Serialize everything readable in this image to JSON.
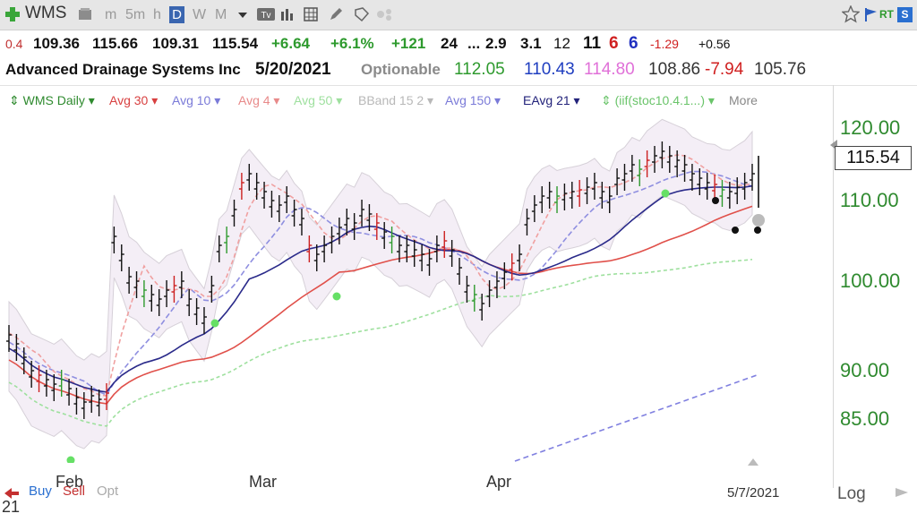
{
  "toolbar": {
    "symbol": "WMS",
    "periods": [
      "m",
      "5m",
      "h",
      "D",
      "W",
      "M"
    ],
    "selected_period": "D",
    "icons": [
      "add-icon",
      "settings-icon",
      "chart-type-icon",
      "bar-chart-icon",
      "grid-icon",
      "pencil-icon",
      "tag-icon",
      "dots-icon",
      "star-icon",
      "flag-icon",
      "rt-icon",
      "s-icon"
    ],
    "rt_label": "RT",
    "s_label": "S",
    "colors": {
      "toolbar_bg": "#e6e6e6",
      "selected": "#3a66b0"
    }
  },
  "quote_row": {
    "items": [
      {
        "text": "0.4",
        "color": "#c03030"
      },
      {
        "text": "109.36",
        "color": "#111111"
      },
      {
        "text": "115.66",
        "color": "#111111"
      },
      {
        "text": "109.31",
        "color": "#111111"
      },
      {
        "text": "115.54",
        "color": "#111111"
      },
      {
        "text": "+6.64",
        "color": "#2e9a2e"
      },
      {
        "text": "+6.1%",
        "color": "#2e9a2e"
      },
      {
        "text": "+121",
        "color": "#2e9a2e"
      },
      {
        "text": "24",
        "color": "#111111"
      },
      {
        "text": "...",
        "color": "#111111"
      },
      {
        "text": "2.9",
        "color": "#111111"
      },
      {
        "text": "3.1",
        "color": "#111111"
      },
      {
        "text": "12",
        "color": "#111111"
      },
      {
        "text": "11",
        "color": "#111111"
      },
      {
        "text": "6",
        "color": "#d02020"
      },
      {
        "text": "6",
        "color": "#2030c0"
      },
      {
        "text": "-1.29",
        "color": "#d02020"
      },
      {
        "text": "+0.56",
        "color": "#111111"
      }
    ]
  },
  "info_row": {
    "company": "Advanced Drainage Systems Inc",
    "date": "5/20/2021",
    "optionable": "Optionable",
    "values": [
      {
        "text": "112.05",
        "color": "#2e9a2e"
      },
      {
        "text": "110.43",
        "color": "#1f3ec0"
      },
      {
        "text": "114.80",
        "color": "#e070d8"
      },
      {
        "text": "108.86",
        "color": "#333333"
      },
      {
        "text": "-7.94",
        "color": "#d02020"
      },
      {
        "text": "105.76",
        "color": "#333333"
      }
    ]
  },
  "legend": {
    "items": [
      {
        "label": "WMS Daily",
        "color": "#2e8a2e"
      },
      {
        "label": "Avg 30",
        "color": "#d84040"
      },
      {
        "label": "Avg 10",
        "color": "#7a7ad8"
      },
      {
        "label": "Avg 4",
        "color": "#e88a8a"
      },
      {
        "label": "Avg 50",
        "color": "#9ee09e"
      },
      {
        "label": "BBand 15 2",
        "color": "#b8b8b8"
      },
      {
        "label": "Avg 150",
        "color": "#7a7ad8"
      },
      {
        "label": "EAvg 21",
        "color": "#22227a"
      },
      {
        "label": "(iif(stoc10.4.1...)",
        "color": "#6ac46a"
      }
    ],
    "more": "More"
  },
  "chart_data": {
    "type": "ohlc",
    "yticks": [
      "120.00",
      "110.00",
      "100.00",
      "90.00",
      "85.00"
    ],
    "last_price": "115.54",
    "xticks": [
      "Feb",
      "Mar",
      "Apr"
    ],
    "x_end_label": "5/7/2021",
    "scale": "Log",
    "lines": [
      {
        "name": "EAvg 21",
        "color": "#2a2a8a"
      },
      {
        "name": "Avg 30",
        "color": "#e0504a"
      },
      {
        "name": "Avg 10",
        "color": "#8f8fe0"
      },
      {
        "name": "Avg 4",
        "color": "#f0a0a0"
      },
      {
        "name": "Avg 50",
        "color": "#9ee09e"
      },
      {
        "name": "Avg 150",
        "color": "#8080e0"
      }
    ]
  },
  "bottom": {
    "year": "21",
    "buy": "Buy",
    "sell": "Sell",
    "opt": "Opt",
    "log": "Log"
  }
}
